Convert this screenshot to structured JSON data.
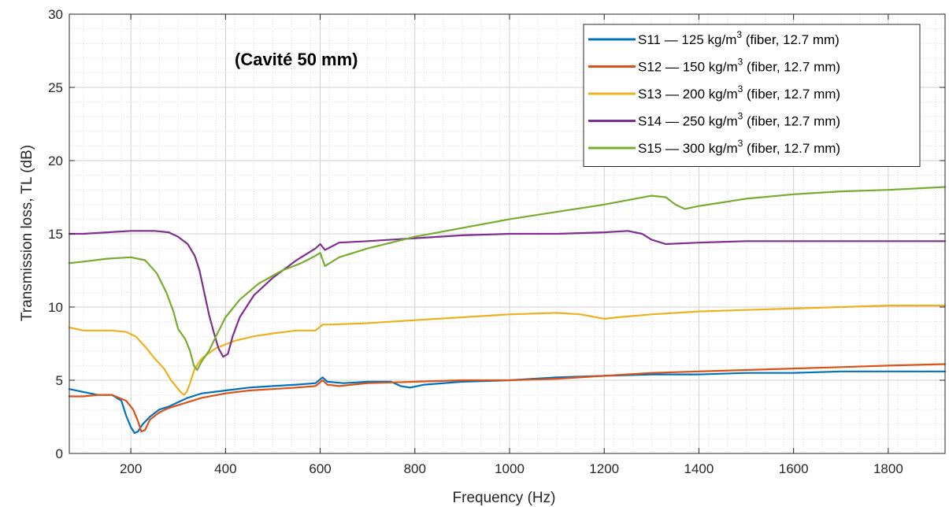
{
  "chart_data": {
    "type": "line",
    "title": "",
    "annotation": "(Cavité 50 mm)",
    "xlabel": "Frequency (Hz)",
    "ylabel": "Transmission loss, TL (dB)",
    "xlim": [
      70,
      1920
    ],
    "ylim": [
      0,
      30
    ],
    "xticks": [
      200,
      400,
      600,
      800,
      1000,
      1200,
      1400,
      1600,
      1800
    ],
    "yticks": [
      0,
      5,
      10,
      15,
      20,
      25,
      30
    ],
    "grid": true,
    "minor_grid": true,
    "legend_position": "top-right",
    "series": [
      {
        "name": "S11",
        "legend_main": "S11 — 125 kg/m",
        "legend_sup": "3",
        "legend_suffix": " (fiber, 12.7 mm)",
        "color": "#0072BD",
        "points": [
          [
            70,
            4.4
          ],
          [
            100,
            4.2
          ],
          [
            130,
            4.0
          ],
          [
            160,
            4.0
          ],
          [
            180,
            3.6
          ],
          [
            190,
            2.6
          ],
          [
            200,
            1.8
          ],
          [
            208,
            1.4
          ],
          [
            215,
            1.5
          ],
          [
            225,
            2.0
          ],
          [
            240,
            2.5
          ],
          [
            260,
            3.0
          ],
          [
            280,
            3.2
          ],
          [
            300,
            3.5
          ],
          [
            320,
            3.8
          ],
          [
            350,
            4.1
          ],
          [
            400,
            4.3
          ],
          [
            450,
            4.5
          ],
          [
            500,
            4.6
          ],
          [
            550,
            4.7
          ],
          [
            590,
            4.8
          ],
          [
            605,
            5.2
          ],
          [
            615,
            4.9
          ],
          [
            650,
            4.8
          ],
          [
            700,
            4.9
          ],
          [
            750,
            4.9
          ],
          [
            770,
            4.6
          ],
          [
            790,
            4.5
          ],
          [
            820,
            4.7
          ],
          [
            900,
            4.9
          ],
          [
            1000,
            5.0
          ],
          [
            1100,
            5.2
          ],
          [
            1200,
            5.3
          ],
          [
            1300,
            5.4
          ],
          [
            1400,
            5.4
          ],
          [
            1500,
            5.5
          ],
          [
            1600,
            5.5
          ],
          [
            1700,
            5.6
          ],
          [
            1800,
            5.6
          ],
          [
            1920,
            5.6
          ]
        ]
      },
      {
        "name": "S12",
        "legend_main": "S12 — 150 kg/m",
        "legend_sup": "3",
        "legend_suffix": " (fiber, 12.7 mm)",
        "color": "#D95319",
        "points": [
          [
            70,
            3.9
          ],
          [
            100,
            3.9
          ],
          [
            130,
            4.0
          ],
          [
            160,
            4.0
          ],
          [
            190,
            3.6
          ],
          [
            205,
            3.0
          ],
          [
            215,
            2.2
          ],
          [
            222,
            1.5
          ],
          [
            230,
            1.6
          ],
          [
            240,
            2.3
          ],
          [
            260,
            2.8
          ],
          [
            280,
            3.1
          ],
          [
            300,
            3.3
          ],
          [
            320,
            3.5
          ],
          [
            350,
            3.8
          ],
          [
            400,
            4.1
          ],
          [
            450,
            4.3
          ],
          [
            500,
            4.4
          ],
          [
            550,
            4.5
          ],
          [
            590,
            4.6
          ],
          [
            605,
            5.0
          ],
          [
            615,
            4.7
          ],
          [
            640,
            4.6
          ],
          [
            700,
            4.8
          ],
          [
            800,
            4.9
          ],
          [
            900,
            5.0
          ],
          [
            1000,
            5.0
          ],
          [
            1100,
            5.1
          ],
          [
            1200,
            5.3
          ],
          [
            1300,
            5.5
          ],
          [
            1400,
            5.6
          ],
          [
            1500,
            5.7
          ],
          [
            1600,
            5.8
          ],
          [
            1700,
            5.9
          ],
          [
            1800,
            6.0
          ],
          [
            1920,
            6.1
          ]
        ]
      },
      {
        "name": "S13",
        "legend_main": "S13 — 200 kg/m",
        "legend_sup": "3",
        "legend_suffix": " (fiber, 12.7 mm)",
        "color": "#EDB120",
        "points": [
          [
            70,
            8.6
          ],
          [
            100,
            8.4
          ],
          [
            130,
            8.4
          ],
          [
            160,
            8.4
          ],
          [
            190,
            8.3
          ],
          [
            210,
            8.0
          ],
          [
            230,
            7.3
          ],
          [
            250,
            6.5
          ],
          [
            270,
            5.8
          ],
          [
            285,
            5.0
          ],
          [
            295,
            4.6
          ],
          [
            305,
            4.2
          ],
          [
            312,
            4.0
          ],
          [
            318,
            4.2
          ],
          [
            325,
            4.8
          ],
          [
            335,
            5.8
          ],
          [
            350,
            6.5
          ],
          [
            380,
            7.2
          ],
          [
            420,
            7.7
          ],
          [
            460,
            8.0
          ],
          [
            500,
            8.2
          ],
          [
            550,
            8.4
          ],
          [
            590,
            8.4
          ],
          [
            605,
            8.8
          ],
          [
            620,
            8.8
          ],
          [
            700,
            8.9
          ],
          [
            800,
            9.1
          ],
          [
            900,
            9.3
          ],
          [
            1000,
            9.5
          ],
          [
            1100,
            9.6
          ],
          [
            1150,
            9.5
          ],
          [
            1200,
            9.2
          ],
          [
            1230,
            9.3
          ],
          [
            1300,
            9.5
          ],
          [
            1400,
            9.7
          ],
          [
            1500,
            9.8
          ],
          [
            1600,
            9.9
          ],
          [
            1700,
            10.0
          ],
          [
            1800,
            10.1
          ],
          [
            1920,
            10.1
          ]
        ]
      },
      {
        "name": "S14",
        "legend_main": "S14 — 250 kg/m",
        "legend_sup": "3",
        "legend_suffix": " (fiber, 12.7 mm)",
        "color": "#7E2F8E",
        "points": [
          [
            70,
            15.0
          ],
          [
            100,
            15.0
          ],
          [
            150,
            15.1
          ],
          [
            200,
            15.2
          ],
          [
            250,
            15.2
          ],
          [
            280,
            15.1
          ],
          [
            300,
            14.8
          ],
          [
            320,
            14.3
          ],
          [
            335,
            13.5
          ],
          [
            345,
            12.5
          ],
          [
            355,
            11.0
          ],
          [
            365,
            9.5
          ],
          [
            375,
            8.3
          ],
          [
            385,
            7.2
          ],
          [
            395,
            6.6
          ],
          [
            405,
            6.8
          ],
          [
            415,
            8.0
          ],
          [
            430,
            9.3
          ],
          [
            460,
            10.8
          ],
          [
            500,
            12.0
          ],
          [
            550,
            13.2
          ],
          [
            590,
            14.0
          ],
          [
            600,
            14.3
          ],
          [
            610,
            13.9
          ],
          [
            640,
            14.4
          ],
          [
            700,
            14.5
          ],
          [
            800,
            14.7
          ],
          [
            900,
            14.9
          ],
          [
            1000,
            15.0
          ],
          [
            1100,
            15.0
          ],
          [
            1200,
            15.1
          ],
          [
            1250,
            15.2
          ],
          [
            1280,
            15.0
          ],
          [
            1300,
            14.6
          ],
          [
            1330,
            14.3
          ],
          [
            1400,
            14.4
          ],
          [
            1500,
            14.5
          ],
          [
            1600,
            14.5
          ],
          [
            1700,
            14.5
          ],
          [
            1800,
            14.5
          ],
          [
            1920,
            14.5
          ]
        ]
      },
      {
        "name": "S15",
        "legend_main": "S15 — 300 kg/m",
        "legend_sup": "3",
        "legend_suffix": " (fiber, 12.7 mm)",
        "color": "#77AC30",
        "points": [
          [
            70,
            13.0
          ],
          [
            100,
            13.1
          ],
          [
            150,
            13.3
          ],
          [
            200,
            13.4
          ],
          [
            230,
            13.2
          ],
          [
            255,
            12.3
          ],
          [
            275,
            11.0
          ],
          [
            290,
            9.7
          ],
          [
            300,
            8.5
          ],
          [
            315,
            7.8
          ],
          [
            325,
            7.0
          ],
          [
            333,
            6.0
          ],
          [
            340,
            5.7
          ],
          [
            350,
            6.3
          ],
          [
            365,
            7.0
          ],
          [
            380,
            8.0
          ],
          [
            400,
            9.3
          ],
          [
            430,
            10.5
          ],
          [
            470,
            11.6
          ],
          [
            520,
            12.5
          ],
          [
            560,
            13.0
          ],
          [
            590,
            13.5
          ],
          [
            600,
            13.7
          ],
          [
            610,
            12.8
          ],
          [
            640,
            13.4
          ],
          [
            700,
            14.0
          ],
          [
            800,
            14.8
          ],
          [
            900,
            15.4
          ],
          [
            1000,
            16.0
          ],
          [
            1100,
            16.5
          ],
          [
            1200,
            17.0
          ],
          [
            1250,
            17.3
          ],
          [
            1300,
            17.6
          ],
          [
            1330,
            17.5
          ],
          [
            1350,
            17.0
          ],
          [
            1370,
            16.7
          ],
          [
            1400,
            16.9
          ],
          [
            1500,
            17.4
          ],
          [
            1600,
            17.7
          ],
          [
            1700,
            17.9
          ],
          [
            1800,
            18.0
          ],
          [
            1920,
            18.2
          ]
        ]
      }
    ]
  }
}
